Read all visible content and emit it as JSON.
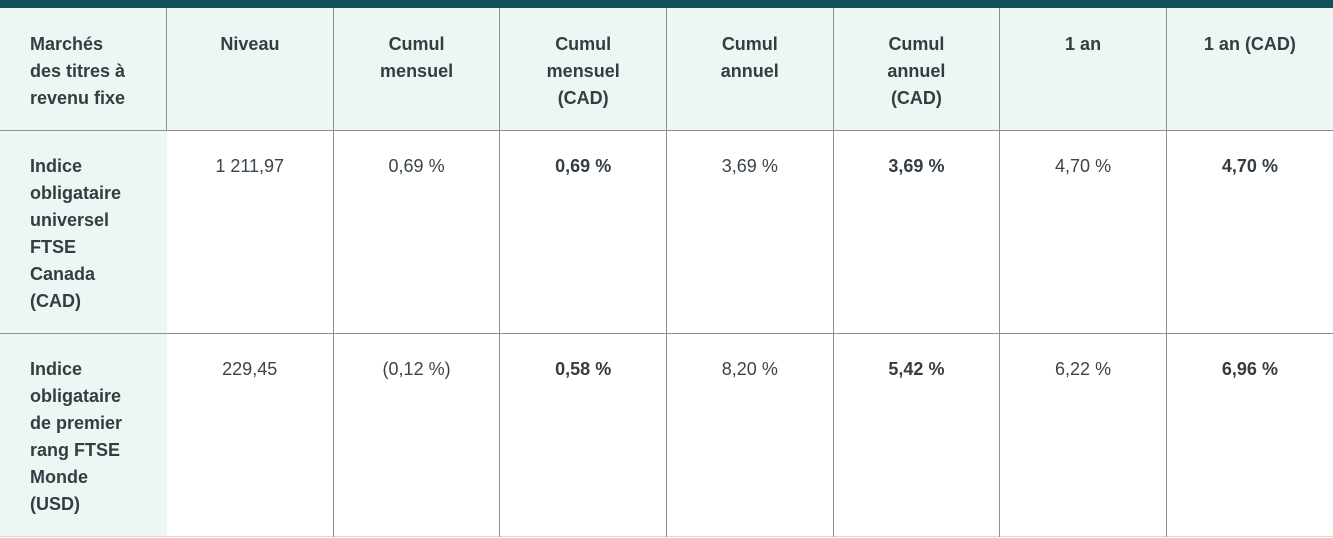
{
  "table": {
    "columns": [
      {
        "label": "Marchés des titres à revenu fixe"
      },
      {
        "label": "Niveau"
      },
      {
        "label": "Cumul mensuel"
      },
      {
        "label": "Cumul mensuel (CAD)"
      },
      {
        "label": "Cumul annuel"
      },
      {
        "label": "Cumul annuel (CAD)"
      },
      {
        "label": "1 an"
      },
      {
        "label": "1 an (CAD)"
      }
    ],
    "rows": [
      {
        "name": "Indice obligataire universel FTSE Canada (CAD)",
        "niveau": "1 211,97",
        "cumul_mensuel": "0,69 %",
        "cumul_mensuel_cad": "0,69 %",
        "cumul_annuel": "3,69 %",
        "cumul_annuel_cad": "3,69 %",
        "un_an": "4,70 %",
        "un_an_cad": "4,70 %"
      },
      {
        "name": "Indice obligataire de premier rang FTSE Monde (USD)",
        "niveau": "229,45",
        "cumul_mensuel": "(0,12 %)",
        "cumul_mensuel_cad": "0,58 %",
        "cumul_annuel": "8,20 %",
        "cumul_annuel_cad": "5,42 %",
        "un_an": "6,22 %",
        "un_an_cad": "6,96 %"
      }
    ],
    "colors": {
      "accent_top_bar": "#0f5157",
      "header_background": "#edf6f3",
      "divider": "#8f8f8f",
      "bottom_border": "#d8d8d8",
      "text": "#333d43"
    }
  }
}
